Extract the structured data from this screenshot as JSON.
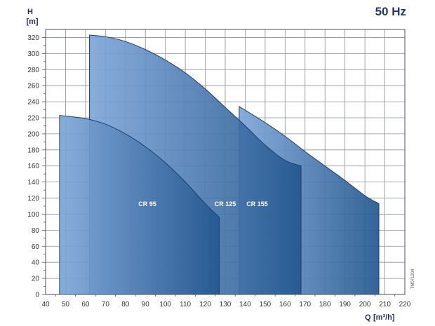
{
  "chart_data": {
    "type": "area",
    "frequency": "50 Hz",
    "xlabel_prefix": "Q",
    "xlabel_unit": "[m³/h]",
    "ylabel_name": "H",
    "ylabel_unit": "[m]",
    "code": "TM071204",
    "xlim": [
      40,
      220
    ],
    "ylim": [
      0,
      330
    ],
    "xticks": [
      40,
      50,
      60,
      70,
      80,
      90,
      100,
      110,
      120,
      130,
      140,
      150,
      160,
      170,
      180,
      190,
      200,
      210,
      220
    ],
    "yticks": [
      0,
      20,
      40,
      60,
      80,
      100,
      120,
      140,
      160,
      180,
      200,
      220,
      240,
      260,
      280,
      300,
      320
    ],
    "grid": true,
    "series": [
      {
        "name": "CR 155",
        "label_at": [
          146,
          110
        ],
        "curve": [
          [
            137,
            234
          ],
          [
            150,
            214
          ],
          [
            160,
            197
          ],
          [
            170,
            178
          ],
          [
            180,
            160
          ],
          [
            190,
            142
          ],
          [
            200,
            123
          ],
          [
            207,
            113
          ]
        ],
        "q_min": 137,
        "q_max": 207
      },
      {
        "name": "CR 125",
        "label_at": [
          130,
          110
        ],
        "curve": [
          [
            62,
            323
          ],
          [
            70,
            321
          ],
          [
            80,
            315
          ],
          [
            90,
            305
          ],
          [
            100,
            292
          ],
          [
            110,
            276
          ],
          [
            120,
            256
          ],
          [
            130,
            233
          ],
          [
            140,
            210
          ],
          [
            150,
            186
          ],
          [
            160,
            167
          ],
          [
            168,
            160
          ]
        ],
        "q_min": 62,
        "q_max": 168
      },
      {
        "name": "CR 95",
        "label_at": [
          91,
          110
        ],
        "curve": [
          [
            47,
            223
          ],
          [
            60,
            219
          ],
          [
            70,
            212
          ],
          [
            80,
            200
          ],
          [
            90,
            184
          ],
          [
            100,
            164
          ],
          [
            110,
            140
          ],
          [
            120,
            113
          ],
          [
            127,
            96
          ]
        ],
        "q_min": 47,
        "q_max": 127
      }
    ],
    "colors": {
      "fill_light": "#7ea6d8",
      "fill_dark": "#23578f",
      "outline": "#1a3f6e",
      "frequency": "#1f3a6e"
    }
  }
}
